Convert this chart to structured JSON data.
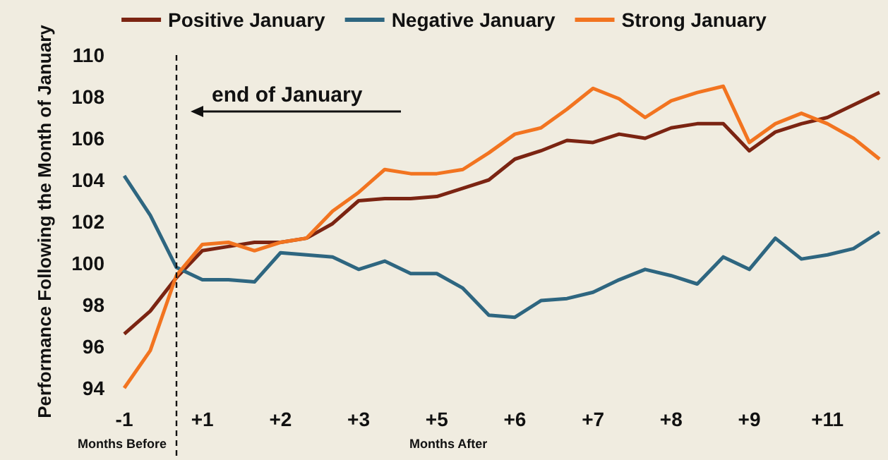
{
  "chart_data": {
    "type": "line",
    "ylabel": "Performance Following the Month of January",
    "categories": [
      "-1",
      null,
      null,
      "+1",
      null,
      null,
      "+2",
      null,
      null,
      "+3",
      null,
      null,
      "+5",
      null,
      null,
      "+6",
      null,
      null,
      "+7",
      null,
      null,
      "+8",
      null,
      null,
      "+9",
      null,
      null,
      "+11",
      null,
      null
    ],
    "ylim": [
      94,
      110
    ],
    "yticks": [
      94,
      96,
      98,
      100,
      102,
      104,
      106,
      108,
      110
    ],
    "legend": "top",
    "marker": "none",
    "line_style": "solid",
    "annotations": [
      "end of January",
      "Months Before",
      "Months After"
    ],
    "series": [
      {
        "name": "Positive January",
        "color": "#7b2412",
        "values": [
          96.6,
          97.7,
          99.3,
          100.6,
          100.8,
          101,
          101,
          101.2,
          101.9,
          103,
          103.1,
          103.1,
          103.2,
          103.6,
          104,
          105,
          105.4,
          105.9,
          105.8,
          106.2,
          106,
          106.5,
          106.7,
          106.7,
          105.4,
          106.3,
          106.7,
          107,
          107.6,
          108.2
        ]
      },
      {
        "name": "Negative January",
        "color": "#2e6680",
        "values": [
          104.2,
          102.3,
          99.8,
          99.2,
          99.2,
          99.1,
          100.5,
          100.4,
          100.3,
          99.7,
          100.1,
          99.5,
          99.5,
          98.8,
          97.5,
          97.4,
          98.2,
          98.3,
          98.6,
          99.2,
          99.7,
          99.4,
          99,
          100.3,
          99.7,
          101.2,
          100.2,
          100.4,
          100.7,
          101.5
        ]
      },
      {
        "name": "Strong January",
        "color": "#f27420",
        "values": [
          94,
          95.8,
          99.4,
          100.9,
          101,
          100.6,
          101,
          101.2,
          102.5,
          103.4,
          104.5,
          104.3,
          104.3,
          104.5,
          105.3,
          106.2,
          106.5,
          107.4,
          108.4,
          107.9,
          107,
          107.8,
          108.2,
          108.5,
          105.8,
          106.7,
          107.2,
          106.7,
          106,
          105
        ]
      }
    ]
  }
}
